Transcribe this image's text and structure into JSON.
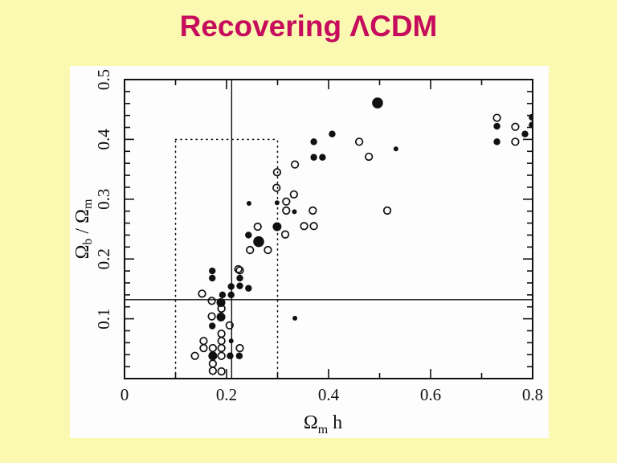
{
  "title": {
    "text": "Recovering ΛCDM",
    "color": "#C60C5C"
  },
  "colors": {
    "background": "#FBF9B1",
    "panel": "#FDFDFE",
    "ink": "#111111"
  },
  "chart_data": {
    "type": "scatter",
    "title": "Recovering ΛCDM",
    "xlabel": "Ωm h",
    "ylabel": "Ωb / Ωm",
    "xlabel_segments": [
      {
        "t": "Ω",
        "sub": false
      },
      {
        "t": "m",
        "sub": true
      },
      {
        "t": " h",
        "sub": false
      }
    ],
    "ylabel_segments": [
      {
        "t": "Ω",
        "sub": false
      },
      {
        "t": "b",
        "sub": true
      },
      {
        "t": " / ",
        "sub": false
      },
      {
        "t": "Ω",
        "sub": false
      },
      {
        "t": "m",
        "sub": true
      }
    ],
    "x_range": [
      0,
      0.8
    ],
    "y_range": [
      0,
      0.5
    ],
    "grid": false,
    "legend": "none",
    "x_major_ticks": [
      {
        "v": 0.0,
        "label": "0"
      },
      {
        "v": 0.2,
        "label": "0.2"
      },
      {
        "v": 0.4,
        "label": "0.4"
      },
      {
        "v": 0.6,
        "label": "0.6"
      },
      {
        "v": 0.8,
        "label": "0.8"
      }
    ],
    "x_minor_ticks": [
      0.1,
      0.3,
      0.5,
      0.7
    ],
    "y_major_ticks": [
      {
        "v": 0.1,
        "label": "0.1"
      },
      {
        "v": 0.2,
        "label": "0.2"
      },
      {
        "v": 0.3,
        "label": "0.3"
      },
      {
        "v": 0.4,
        "label": "0.4"
      },
      {
        "v": 0.5,
        "label": "0.5"
      }
    ],
    "y_minor_ticks": [
      0.02,
      0.04,
      0.06,
      0.08,
      0.12,
      0.14,
      0.16,
      0.18,
      0.22,
      0.24,
      0.26,
      0.28,
      0.32,
      0.34,
      0.36,
      0.38,
      0.42,
      0.44,
      0.46,
      0.48
    ],
    "reference_lines": {
      "horizontal_y": 0.132,
      "vertical_x": 0.21
    },
    "dotted_box": {
      "x0": 0.1,
      "x1": 0.3,
      "y0": 0.0,
      "y1": 0.4
    },
    "marker_radii": {
      "s": 3.0,
      "m": 4.2,
      "l": 5.5,
      "x": 6.8
    },
    "open_marker": {
      "radius": 4.3,
      "stroke_width": 1.7
    },
    "series": [
      {
        "name": "filled-circles",
        "marker": "filled-circle",
        "points": [
          [
            0.172,
            0.18,
            "m"
          ],
          [
            0.172,
            0.168,
            "m"
          ],
          [
            0.226,
            0.168,
            "m"
          ],
          [
            0.209,
            0.154,
            "m"
          ],
          [
            0.226,
            0.155,
            "m"
          ],
          [
            0.243,
            0.151,
            "m"
          ],
          [
            0.192,
            0.14,
            "m"
          ],
          [
            0.209,
            0.14,
            "m"
          ],
          [
            0.189,
            0.127,
            "l"
          ],
          [
            0.189,
            0.103,
            "l"
          ],
          [
            0.172,
            0.088,
            "m"
          ],
          [
            0.209,
            0.063,
            "s"
          ],
          [
            0.173,
            0.038,
            "l"
          ],
          [
            0.207,
            0.038,
            "m"
          ],
          [
            0.225,
            0.038,
            "m"
          ],
          [
            0.334,
            0.101,
            "s"
          ],
          [
            0.244,
            0.293,
            "s"
          ],
          [
            0.299,
            0.294,
            "s"
          ],
          [
            0.333,
            0.279,
            "s"
          ],
          [
            0.299,
            0.254,
            "l"
          ],
          [
            0.243,
            0.24,
            "m"
          ],
          [
            0.263,
            0.229,
            "x"
          ],
          [
            0.371,
            0.396,
            "m"
          ],
          [
            0.407,
            0.409,
            "m"
          ],
          [
            0.371,
            0.37,
            "m"
          ],
          [
            0.388,
            0.37,
            "m"
          ],
          [
            0.496,
            0.461,
            "x"
          ],
          [
            0.532,
            0.384,
            "s"
          ],
          [
            0.73,
            0.422,
            "m"
          ],
          [
            0.73,
            0.396,
            "m"
          ],
          [
            0.785,
            0.409,
            "m"
          ],
          [
            0.799,
            0.437,
            "m"
          ],
          [
            0.799,
            0.424,
            "m"
          ]
        ]
      },
      {
        "name": "open-circles",
        "marker": "open-circle",
        "points": [
          [
            0.226,
            0.181
          ],
          [
            0.152,
            0.142
          ],
          [
            0.171,
            0.13
          ],
          [
            0.19,
            0.117
          ],
          [
            0.171,
            0.104
          ],
          [
            0.206,
            0.089
          ],
          [
            0.19,
            0.075
          ],
          [
            0.155,
            0.063
          ],
          [
            0.19,
            0.063
          ],
          [
            0.155,
            0.051
          ],
          [
            0.173,
            0.051
          ],
          [
            0.19,
            0.051
          ],
          [
            0.226,
            0.051
          ],
          [
            0.138,
            0.038
          ],
          [
            0.19,
            0.038
          ],
          [
            0.173,
            0.025
          ],
          [
            0.173,
            0.013
          ],
          [
            0.19,
            0.012
          ],
          [
            0.223,
            0.183
          ],
          [
            0.246,
            0.215
          ],
          [
            0.281,
            0.215
          ],
          [
            0.261,
            0.254
          ],
          [
            0.315,
            0.241
          ],
          [
            0.352,
            0.255
          ],
          [
            0.371,
            0.255
          ],
          [
            0.317,
            0.281
          ],
          [
            0.369,
            0.281
          ],
          [
            0.317,
            0.296
          ],
          [
            0.298,
            0.319
          ],
          [
            0.299,
            0.345
          ],
          [
            0.332,
            0.308
          ],
          [
            0.334,
            0.358
          ],
          [
            0.46,
            0.396
          ],
          [
            0.479,
            0.371
          ],
          [
            0.515,
            0.281
          ],
          [
            0.73,
            0.436
          ],
          [
            0.766,
            0.421
          ],
          [
            0.766,
            0.396
          ]
        ]
      }
    ]
  }
}
